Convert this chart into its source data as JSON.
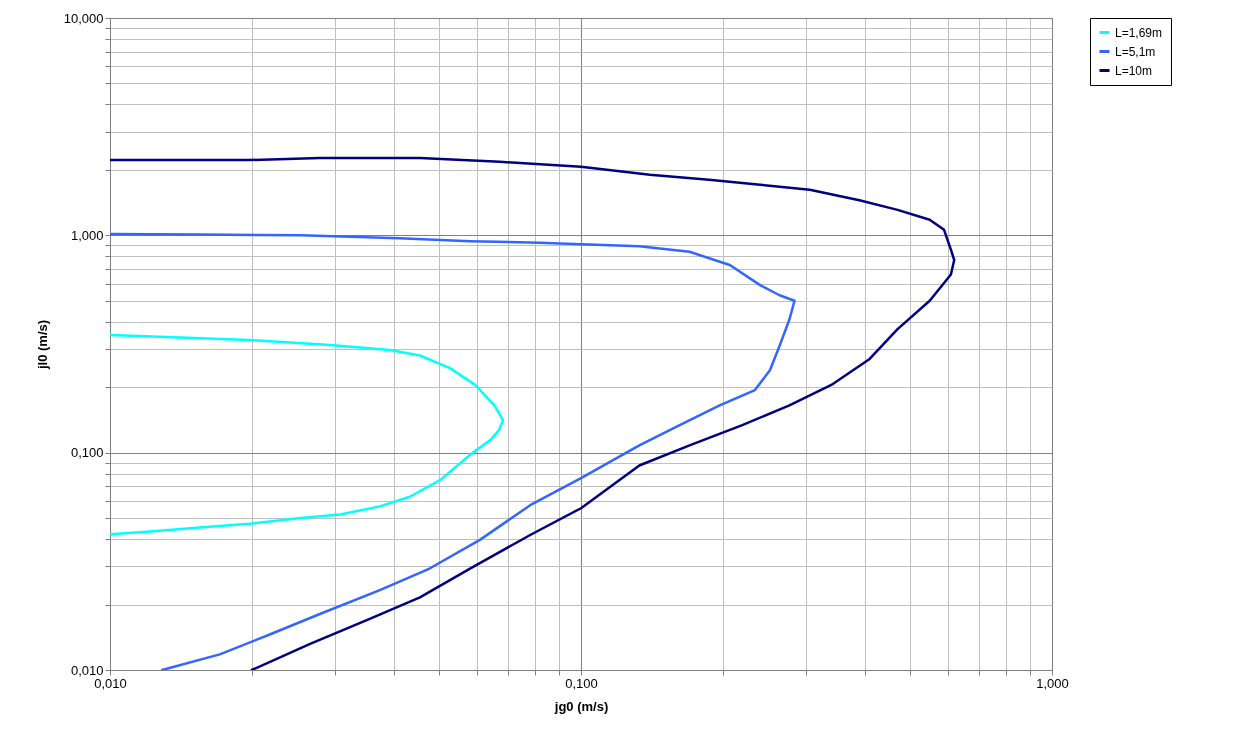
{
  "chart_data": {
    "type": "line",
    "xlabel": "jg0 (m/s)",
    "ylabel": "jl0 (m/s)",
    "log": "xy",
    "grid": true,
    "legend": "right",
    "marker": "none",
    "line_style": "solid",
    "xlim": [
      0.01,
      1
    ],
    "ylim": [
      0.01,
      10
    ],
    "xticks": [
      {
        "value": 0.01,
        "label": "0,010"
      },
      {
        "value": 0.02,
        "label": null
      },
      {
        "value": 0.03,
        "label": null
      },
      {
        "value": 0.04,
        "label": null
      },
      {
        "value": 0.05,
        "label": null
      },
      {
        "value": 0.06,
        "label": null
      },
      {
        "value": 0.07,
        "label": null
      },
      {
        "value": 0.08,
        "label": null
      },
      {
        "value": 0.09,
        "label": null
      },
      {
        "value": 0.1,
        "label": "0,100"
      },
      {
        "value": 0.2,
        "label": null
      },
      {
        "value": 0.3,
        "label": null
      },
      {
        "value": 0.4,
        "label": null
      },
      {
        "value": 0.5,
        "label": null
      },
      {
        "value": 0.6,
        "label": null
      },
      {
        "value": 0.7,
        "label": null
      },
      {
        "value": 0.8,
        "label": null
      },
      {
        "value": 0.9,
        "label": null
      },
      {
        "value": 1,
        "label": "1,000"
      }
    ],
    "yticks": [
      {
        "value": 0.01,
        "label": "0,010"
      },
      {
        "value": 0.02,
        "label": null
      },
      {
        "value": 0.03,
        "label": null
      },
      {
        "value": 0.04,
        "label": null
      },
      {
        "value": 0.05,
        "label": null
      },
      {
        "value": 0.06,
        "label": null
      },
      {
        "value": 0.07,
        "label": null
      },
      {
        "value": 0.08,
        "label": null
      },
      {
        "value": 0.09,
        "label": null
      },
      {
        "value": 0.1,
        "label": "0,100"
      },
      {
        "value": 0.2,
        "label": null
      },
      {
        "value": 0.3,
        "label": null
      },
      {
        "value": 0.4,
        "label": null
      },
      {
        "value": 0.5,
        "label": null
      },
      {
        "value": 0.6,
        "label": null
      },
      {
        "value": 0.7,
        "label": null
      },
      {
        "value": 0.8,
        "label": null
      },
      {
        "value": 0.9,
        "label": null
      },
      {
        "value": 1,
        "label": "1,000"
      },
      {
        "value": 2,
        "label": null
      },
      {
        "value": 3,
        "label": null
      },
      {
        "value": 4,
        "label": null
      },
      {
        "value": 5,
        "label": null
      },
      {
        "value": 6,
        "label": null
      },
      {
        "value": 7,
        "label": null
      },
      {
        "value": 8,
        "label": null
      },
      {
        "value": 9,
        "label": null
      },
      {
        "value": 10,
        "label": "10,000"
      }
    ],
    "series": [
      {
        "name": "L=1,69m",
        "color": "#00ffff",
        "x": [
          0.01,
          0.0198,
          0.0293,
          0.0393,
          0.0455,
          0.0527,
          0.0596,
          0.0655,
          0.0683,
          0.067,
          0.0641,
          0.0581,
          0.0502,
          0.0433,
          0.0374,
          0.0308,
          0.0254,
          0.0198,
          0.0155,
          0.0122,
          0.01
        ],
        "values": [
          0.348,
          0.33,
          0.313,
          0.297,
          0.28,
          0.245,
          0.205,
          0.165,
          0.141,
          0.127,
          0.114,
          0.0977,
          0.0747,
          0.0627,
          0.0566,
          0.0519,
          0.05,
          0.0471,
          0.0452,
          0.0434,
          0.0421
        ]
      },
      {
        "name": "L=5,1m",
        "color": "#3366ff",
        "x": [
          0.01,
          0.0155,
          0.0254,
          0.0412,
          0.0581,
          0.0817,
          0.1,
          0.133,
          0.17,
          0.207,
          0.24,
          0.264,
          0.284,
          0.277,
          0.264,
          0.252,
          0.234,
          0.197,
          0.162,
          0.133,
          0.1,
          0.078,
          0.061,
          0.0477,
          0.0374,
          0.0279,
          0.0219,
          0.0171,
          0.0129
        ],
        "values": [
          1.014,
          1.01,
          1.0,
          0.97,
          0.94,
          0.925,
          0.91,
          0.89,
          0.84,
          0.73,
          0.59,
          0.53,
          0.5,
          0.41,
          0.31,
          0.24,
          0.194,
          0.165,
          0.134,
          0.108,
          0.0763,
          0.0573,
          0.0397,
          0.0293,
          0.0233,
          0.0181,
          0.0146,
          0.0118,
          0.01
        ]
      },
      {
        "name": "L=10m",
        "color": "#000080",
        "x": [
          0.01,
          0.0198,
          0.0279,
          0.0455,
          0.0672,
          0.1,
          0.14,
          0.187,
          0.24,
          0.306,
          0.39,
          0.47,
          0.55,
          0.59,
          0.61,
          0.62,
          0.61,
          0.55,
          0.47,
          0.41,
          0.34,
          0.277,
          0.22,
          0.17,
          0.133,
          0.1,
          0.078,
          0.058,
          0.0455,
          0.0356,
          0.0266,
          0.02
        ],
        "values": [
          2.22,
          2.22,
          2.27,
          2.27,
          2.18,
          2.07,
          1.9,
          1.8,
          1.71,
          1.62,
          1.45,
          1.31,
          1.18,
          1.06,
          0.86,
          0.77,
          0.66,
          0.5,
          0.37,
          0.27,
          0.205,
          0.165,
          0.134,
          0.108,
          0.0873,
          0.0555,
          0.0418,
          0.0292,
          0.0216,
          0.0172,
          0.0132,
          0.01
        ]
      }
    ]
  }
}
